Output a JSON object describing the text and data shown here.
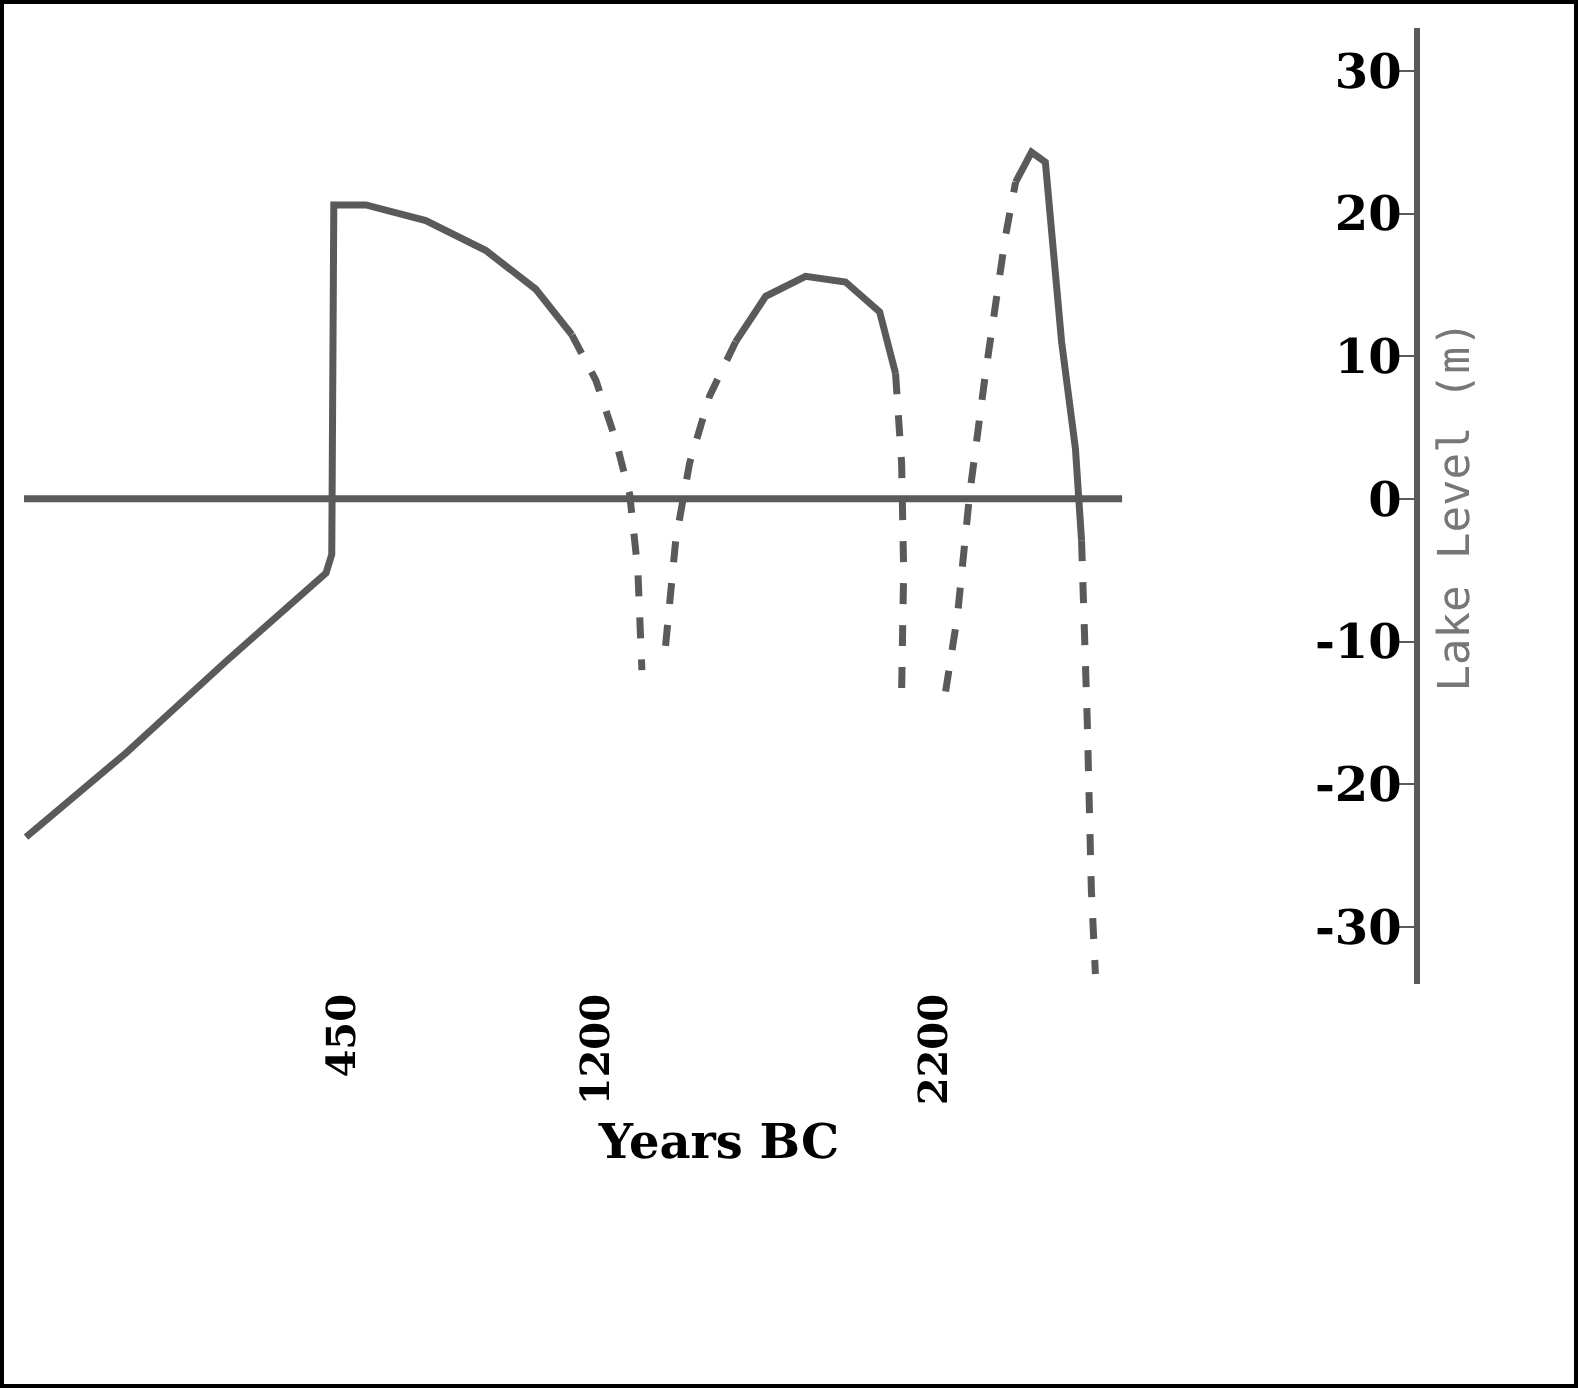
{
  "chart_data": {
    "type": "line",
    "xlabel": "Years BC",
    "ylabel": "Lake Level (m)",
    "xlim": [
      -490,
      3620
    ],
    "xticks": [
      450,
      1200,
      2200
    ],
    "ylim": [
      -34,
      33
    ],
    "yticks": [
      -30,
      -20,
      -10,
      0,
      10,
      20,
      30
    ],
    "grid": false,
    "marker": "none",
    "ref_lines": [
      {
        "axis": "y",
        "value": 0,
        "color": "#5a5a5a",
        "line_style": "solid"
      }
    ],
    "series": [
      {
        "color": "#5a5a5a",
        "line_style": "solid",
        "x": [
          -484,
          -188,
          107,
          403,
          420,
          426,
          521,
          698,
          876,
          1023,
          1130
        ],
        "values": [
          -23.7,
          -17.8,
          -11.4,
          -5.2,
          -3.9,
          20.6,
          20.6,
          19.5,
          17.4,
          14.7,
          11.5
        ]
      },
      {
        "color": "#5a5a5a",
        "line_style": "dashed",
        "x": [
          1130,
          1201,
          1260,
          1301,
          1325,
          1337
        ],
        "values": [
          11.5,
          8.3,
          4.1,
          0.3,
          -5.0,
          -12.0
        ]
      },
      {
        "color": "#5a5a5a",
        "line_style": "dashed",
        "x": [
          1407,
          1437,
          1478,
          1537,
          1614
        ],
        "values": [
          -10.3,
          -2.9,
          2.5,
          7.2,
          11.0
        ]
      },
      {
        "color": "#5a5a5a",
        "line_style": "solid",
        "x": [
          1614,
          1703,
          1821,
          1939,
          2040,
          2087
        ],
        "values": [
          11.0,
          14.2,
          15.6,
          15.2,
          13.1,
          8.8
        ]
      },
      {
        "color": "#5a5a5a",
        "line_style": "dashed",
        "x": [
          2087,
          2105,
          2111,
          2105
        ],
        "values": [
          8.8,
          2.5,
          -5.0,
          -13.5
        ]
      },
      {
        "color": "#5a5a5a",
        "line_style": "dashed",
        "x": [
          2235,
          2270,
          2306,
          2353,
          2412,
          2442
        ],
        "values": [
          -13.5,
          -8.2,
          0.3,
          8.8,
          18.4,
          22.2
        ]
      },
      {
        "color": "#5a5a5a",
        "line_style": "solid",
        "x": [
          2442,
          2489,
          2530,
          2578,
          2619,
          2637
        ],
        "values": [
          22.2,
          24.3,
          23.6,
          11.0,
          3.5,
          -2.9
        ]
      },
      {
        "color": "#5a5a5a",
        "line_style": "dashed",
        "x": [
          2637,
          2654,
          2666,
          2678
        ],
        "values": [
          -2.9,
          -15.7,
          -27.4,
          -33.3
        ]
      }
    ]
  }
}
